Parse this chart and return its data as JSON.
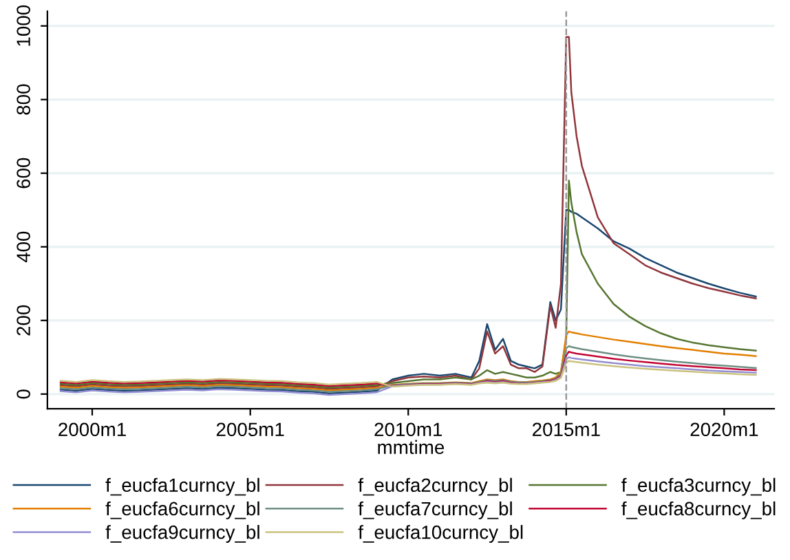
{
  "chart_data": {
    "type": "line",
    "xlabel": "mmtime",
    "x": [
      "1999-01",
      "1999-07",
      "2000-01",
      "2000-07",
      "2001-01",
      "2001-07",
      "2002-01",
      "2002-07",
      "2003-01",
      "2003-07",
      "2004-01",
      "2004-07",
      "2005-01",
      "2005-07",
      "2006-01",
      "2006-07",
      "2007-01",
      "2007-07",
      "2008-01",
      "2008-07",
      "2009-01",
      "2009-07",
      "2010-01",
      "2010-07",
      "2011-01",
      "2011-07",
      "2012-01",
      "2012-04",
      "2012-07",
      "2012-10",
      "2013-01",
      "2013-04",
      "2013-07",
      "2013-10",
      "2014-01",
      "2014-04",
      "2014-07",
      "2014-09",
      "2014-11",
      "2015-01",
      "2015-02",
      "2015-03",
      "2015-05",
      "2015-07",
      "2016-01",
      "2016-07",
      "2017-01",
      "2017-07",
      "2018-01",
      "2018-07",
      "2019-01",
      "2019-07",
      "2020-01",
      "2020-07",
      "2021-01"
    ],
    "series": [
      {
        "name": "f_eucfa1curncy_bl",
        "color": "#1a476f",
        "values": [
          12,
          9,
          14,
          11,
          9,
          10,
          12,
          14,
          16,
          14,
          17,
          16,
          14,
          12,
          11,
          8,
          6,
          2,
          4,
          6,
          9,
          40,
          50,
          55,
          50,
          55,
          45,
          90,
          190,
          120,
          150,
          90,
          80,
          75,
          70,
          80,
          250,
          200,
          230,
          500,
          500,
          495,
          490,
          480,
          450,
          415,
          395,
          370,
          350,
          330,
          315,
          300,
          287,
          275,
          265
        ]
      },
      {
        "name": "f_eucfa2curncy_bl",
        "color": "#90353b",
        "values": [
          24,
          21,
          26,
          23,
          21,
          22,
          24,
          26,
          28,
          26,
          29,
          28,
          26,
          24,
          23,
          20,
          18,
          14,
          16,
          18,
          21,
          35,
          45,
          48,
          45,
          50,
          40,
          70,
          170,
          110,
          130,
          80,
          70,
          70,
          60,
          75,
          240,
          180,
          300,
          970,
          970,
          820,
          700,
          620,
          480,
          410,
          380,
          350,
          330,
          315,
          300,
          288,
          278,
          268,
          260
        ]
      },
      {
        "name": "f_eucfa3curncy_bl",
        "color": "#55752f",
        "values": [
          28,
          25,
          30,
          27,
          25,
          26,
          28,
          30,
          32,
          30,
          33,
          32,
          30,
          28,
          27,
          24,
          22,
          18,
          20,
          22,
          25,
          30,
          35,
          40,
          40,
          45,
          40,
          50,
          65,
          55,
          60,
          55,
          50,
          45,
          45,
          50,
          60,
          55,
          60,
          150,
          580,
          520,
          440,
          380,
          300,
          245,
          210,
          185,
          165,
          150,
          140,
          133,
          127,
          122,
          118
        ]
      },
      {
        "name": "f_eucfa6curncy_bl",
        "color": "#e37e00",
        "values": [
          20,
          17,
          22,
          19,
          17,
          18,
          20,
          22,
          24,
          22,
          25,
          24,
          22,
          20,
          19,
          16,
          14,
          10,
          12,
          14,
          17,
          25,
          28,
          30,
          30,
          32,
          30,
          35,
          40,
          38,
          40,
          35,
          33,
          33,
          35,
          37,
          40,
          45,
          60,
          160,
          170,
          168,
          165,
          162,
          155,
          148,
          142,
          136,
          130,
          125,
          120,
          115,
          110,
          107,
          103
        ]
      },
      {
        "name": "f_eucfa7curncy_bl",
        "color": "#6e8e84",
        "values": [
          16,
          13,
          18,
          15,
          13,
          14,
          16,
          18,
          20,
          18,
          21,
          20,
          18,
          16,
          15,
          12,
          10,
          6,
          8,
          10,
          13,
          24,
          27,
          29,
          29,
          31,
          29,
          33,
          38,
          36,
          38,
          34,
          32,
          32,
          33,
          35,
          38,
          42,
          55,
          125,
          130,
          128,
          125,
          122,
          115,
          108,
          102,
          97,
          92,
          88,
          84,
          80,
          77,
          74,
          71
        ]
      },
      {
        "name": "f_eucfa8curncy_bl",
        "color": "#c10534",
        "values": [
          32,
          29,
          34,
          31,
          29,
          30,
          32,
          34,
          36,
          34,
          37,
          36,
          34,
          32,
          31,
          28,
          26,
          22,
          24,
          26,
          29,
          22,
          25,
          27,
          27,
          29,
          27,
          31,
          35,
          33,
          35,
          31,
          29,
          29,
          31,
          33,
          36,
          40,
          50,
          105,
          115,
          113,
          110,
          108,
          102,
          96,
          91,
          87,
          83,
          79,
          76,
          73,
          70,
          67,
          65
        ]
      },
      {
        "name": "f_eucfa9curncy_bl",
        "color": "#938dd2",
        "values": [
          8,
          5,
          10,
          7,
          5,
          6,
          8,
          10,
          12,
          10,
          13,
          12,
          10,
          8,
          7,
          4,
          2,
          -2,
          0,
          2,
          5,
          21,
          24,
          26,
          26,
          28,
          26,
          30,
          33,
          31,
          33,
          29,
          28,
          28,
          30,
          32,
          34,
          38,
          47,
          95,
          100,
          98,
          96,
          94,
          89,
          84,
          80,
          76,
          73,
          70,
          67,
          64,
          62,
          60,
          58
        ]
      },
      {
        "name": "f_eucfa10curncy_bl",
        "color": "#cac27e",
        "values": [
          36,
          33,
          38,
          35,
          33,
          34,
          36,
          38,
          40,
          38,
          41,
          40,
          38,
          36,
          35,
          32,
          30,
          26,
          28,
          30,
          33,
          20,
          23,
          25,
          25,
          27,
          25,
          29,
          31,
          29,
          31,
          28,
          27,
          27,
          29,
          31,
          33,
          36,
          44,
          85,
          90,
          89,
          87,
          85,
          80,
          76,
          72,
          69,
          66,
          63,
          61,
          58,
          56,
          54,
          52
        ]
      }
    ],
    "xlim": [
      "1998-08",
      "2021-08"
    ],
    "ylim": [
      -40,
      1040
    ],
    "xticks": [
      {
        "value": "2000-01",
        "label": "2000m1"
      },
      {
        "value": "2005-01",
        "label": "2005m1"
      },
      {
        "value": "2010-01",
        "label": "2010m1"
      },
      {
        "value": "2015-01",
        "label": "2015m1"
      },
      {
        "value": "2020-01",
        "label": "2020m1"
      }
    ],
    "yticks": [
      0,
      200,
      400,
      600,
      800,
      1000
    ],
    "ref_lines": [
      {
        "axis": "x",
        "value": "2015-01",
        "label": null,
        "color": "#999999",
        "line_style": "dashed"
      }
    ],
    "grid": "y",
    "legend": "bottom",
    "marker": "none",
    "line_style": "solid"
  }
}
